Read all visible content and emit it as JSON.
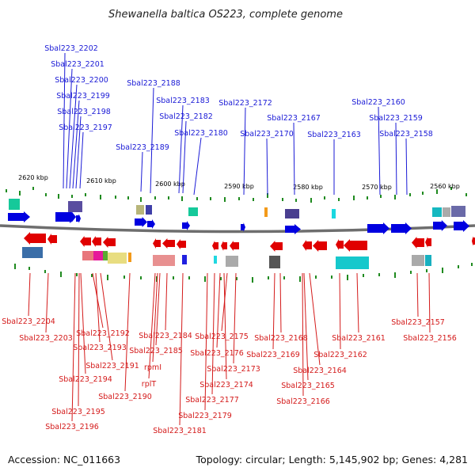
{
  "title": "Shewanella baltica OS223, complete genome",
  "footer": {
    "accession": "Accession: NC_011663",
    "summary": "Topology: circular; Length: 5,145,902 bp; Genes: 4,281"
  },
  "colors": {
    "forward": "#0000e0",
    "reverse": "#e00000",
    "forward_label": "#1a1ad6",
    "reverse_label": "#d41a1a",
    "tick": "#1f8a1f",
    "backbone": "#6e6e6e"
  },
  "scale_labels": [
    "2620 kbp",
    "2610 kbp",
    "2600 kbp",
    "2590 kbp",
    "2580 kbp",
    "2570 kbp",
    "2560 kbp"
  ],
  "forward_genes": [
    "Sbal223_2202",
    "Sbal223_2201",
    "Sbal223_2200",
    "Sbal223_2199",
    "Sbal223_2198",
    "Sbal223_2197",
    "Sbal223_2189",
    "Sbal223_2188",
    "Sbal223_2183",
    "Sbal223_2182",
    "Sbal223_2180",
    "Sbal223_2172",
    "Sbal223_2170",
    "Sbal223_2167",
    "Sbal223_2163",
    "Sbal223_2160",
    "Sbal223_2159",
    "Sbal223_2158"
  ],
  "reverse_genes": [
    "Sbal223_2204",
    "Sbal223_2203",
    "Sbal223_2192",
    "Sbal223_2193",
    "Sbal223_2191",
    "Sbal223_2194",
    "Sbal223_2195",
    "Sbal223_2196",
    "Sbal223_2190",
    "Sbal223_2184",
    "Sbal223_2185",
    "rpmI",
    "rplT",
    "Sbal223_2181",
    "Sbal223_2175",
    "Sbal223_2176",
    "Sbal223_2173",
    "Sbal223_2174",
    "Sbal223_2177",
    "Sbal223_2179",
    "Sbal223_2168",
    "Sbal223_2169",
    "Sbal223_2162",
    "Sbal223_2164",
    "Sbal223_2165",
    "Sbal223_2166",
    "Sbal223_2161",
    "Sbal223_2157",
    "Sbal223_2156"
  ]
}
